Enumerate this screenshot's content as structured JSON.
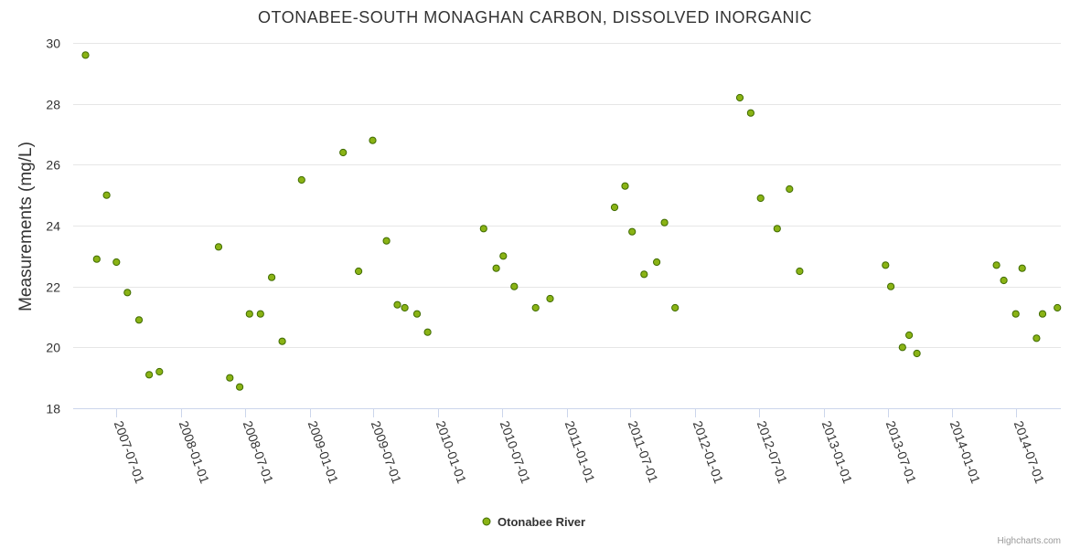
{
  "chart_data": {
    "type": "scatter",
    "title": "OTONABEE-SOUTH MONAGHAN CARBON, DISSOLVED INORGANIC",
    "xlabel": "",
    "ylabel": "Measurements (mg/L)",
    "ylim": [
      18,
      30
    ],
    "yticks": [
      "18",
      "20",
      "22",
      "24",
      "26",
      "28",
      "30"
    ],
    "xlim": [
      "2007-03-01",
      "2014-11-05"
    ],
    "xticks": [
      "2007-07-01",
      "2008-01-01",
      "2008-07-01",
      "2009-01-01",
      "2009-07-01",
      "2010-01-01",
      "2010-07-01",
      "2011-01-01",
      "2011-07-01",
      "2012-01-01",
      "2012-07-01",
      "2013-01-01",
      "2013-07-01",
      "2014-01-01",
      "2014-07-01"
    ],
    "grid": "horizontal",
    "legend": "bottom-center",
    "colors": {
      "marker_fill": "#8ab315",
      "marker_stroke": "#3f6b00",
      "grid": "#e6e6e6",
      "axis": "#ccd6eb"
    },
    "series": [
      {
        "name": "Otonabee River",
        "points": [
          [
            "2007-04-05",
            29.6
          ],
          [
            "2007-05-07",
            22.9
          ],
          [
            "2007-06-04",
            25.0
          ],
          [
            "2007-07-02",
            22.8
          ],
          [
            "2007-08-02",
            21.8
          ],
          [
            "2007-09-04",
            20.9
          ],
          [
            "2007-10-03",
            19.1
          ],
          [
            "2007-11-01",
            19.2
          ],
          [
            "2008-04-17",
            23.3
          ],
          [
            "2008-05-19",
            19.0
          ],
          [
            "2008-06-16",
            18.7
          ],
          [
            "2008-07-14",
            21.1
          ],
          [
            "2008-08-14",
            21.1
          ],
          [
            "2008-09-15",
            22.3
          ],
          [
            "2008-10-15",
            20.2
          ],
          [
            "2008-12-09",
            25.5
          ],
          [
            "2009-04-06",
            26.4
          ],
          [
            "2009-05-20",
            22.5
          ],
          [
            "2009-06-29",
            26.8
          ],
          [
            "2009-08-07",
            23.5
          ],
          [
            "2009-09-07",
            21.4
          ],
          [
            "2009-09-28",
            21.3
          ],
          [
            "2009-11-02",
            21.1
          ],
          [
            "2009-12-02",
            20.5
          ],
          [
            "2010-05-10",
            23.9
          ],
          [
            "2010-06-15",
            22.6
          ],
          [
            "2010-07-05",
            23.0
          ],
          [
            "2010-08-05",
            22.0
          ],
          [
            "2010-10-05",
            21.3
          ],
          [
            "2010-11-15",
            21.6
          ],
          [
            "2011-05-17",
            24.6
          ],
          [
            "2011-06-16",
            25.3
          ],
          [
            "2011-07-06",
            23.8
          ],
          [
            "2011-08-09",
            22.4
          ],
          [
            "2011-09-14",
            22.8
          ],
          [
            "2011-10-06",
            24.1
          ],
          [
            "2011-11-05",
            21.3
          ],
          [
            "2012-05-07",
            28.2
          ],
          [
            "2012-06-07",
            27.7
          ],
          [
            "2012-07-05",
            24.9
          ],
          [
            "2012-08-21",
            23.9
          ],
          [
            "2012-09-25",
            25.2
          ],
          [
            "2012-10-24",
            22.5
          ],
          [
            "2013-06-25",
            22.7
          ],
          [
            "2013-07-10",
            22.0
          ],
          [
            "2013-08-12",
            20.0
          ],
          [
            "2013-08-31",
            20.4
          ],
          [
            "2013-09-22",
            19.8
          ],
          [
            "2014-05-06",
            22.7
          ],
          [
            "2014-05-27",
            22.2
          ],
          [
            "2014-06-30",
            21.1
          ],
          [
            "2014-07-18",
            22.6
          ],
          [
            "2014-08-28",
            20.3
          ],
          [
            "2014-09-14",
            21.1
          ],
          [
            "2014-10-26",
            21.3
          ]
        ]
      }
    ]
  },
  "credits": "Highcharts.com"
}
